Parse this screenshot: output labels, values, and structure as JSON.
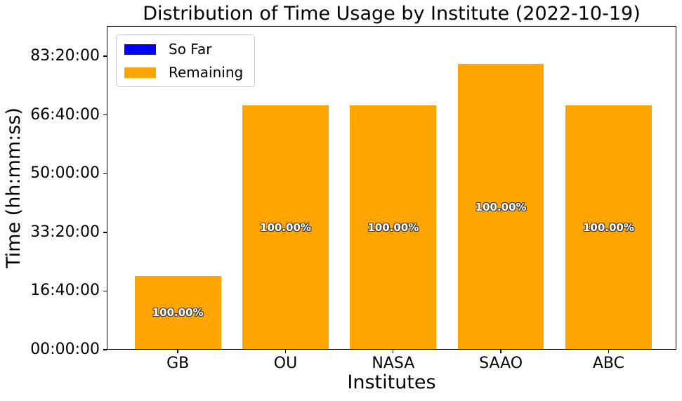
{
  "chart_data": {
    "type": "bar",
    "title": "Distribution of Time Usage by Institute (2022-10-19)",
    "xlabel": "Institutes",
    "ylabel": "Time (hh:mm:ss)",
    "categories": [
      "GB",
      "OU",
      "NASA",
      "SAAO",
      "ABC"
    ],
    "series": [
      {
        "name": "So Far",
        "color": "#0000ff",
        "values_seconds": [
          0,
          0,
          0,
          0,
          0
        ],
        "values_hhmmss": [
          "00:00:00",
          "00:00:00",
          "00:00:00",
          "00:00:00",
          "00:00:00"
        ]
      },
      {
        "name": "Remaining",
        "color": "#ffa500",
        "values_seconds": [
          75600,
          250000,
          250000,
          292000,
          250000
        ],
        "values_hhmmss": [
          "21:00:00",
          "69:26:40",
          "69:26:40",
          "81:06:40",
          "69:26:40"
        ]
      }
    ],
    "bar_labels": [
      "100.00%",
      "100.00%",
      "100.00%",
      "100.00%",
      "100.00%"
    ],
    "yticks": [
      {
        "seconds": 0,
        "label": "00:00:00"
      },
      {
        "seconds": 60000,
        "label": "16:40:00"
      },
      {
        "seconds": 120000,
        "label": "33:20:00"
      },
      {
        "seconds": 180000,
        "label": "50:00:00"
      },
      {
        "seconds": 240000,
        "label": "66:40:00"
      },
      {
        "seconds": 300000,
        "label": "83:20:00"
      }
    ],
    "ylim_seconds": [
      0,
      331000
    ],
    "xlim_units": [
      -0.66,
      4.63
    ],
    "bar_width_units": 0.8,
    "grid": false,
    "legend": {
      "position": "upper-left",
      "entries": [
        {
          "label": "So Far",
          "color": "#0000ff"
        },
        {
          "label": "Remaining",
          "color": "#ffa500"
        }
      ]
    },
    "bar_label_style": {
      "fill": "#ffffff",
      "outline": "#3a3a3a",
      "bold": true
    }
  }
}
